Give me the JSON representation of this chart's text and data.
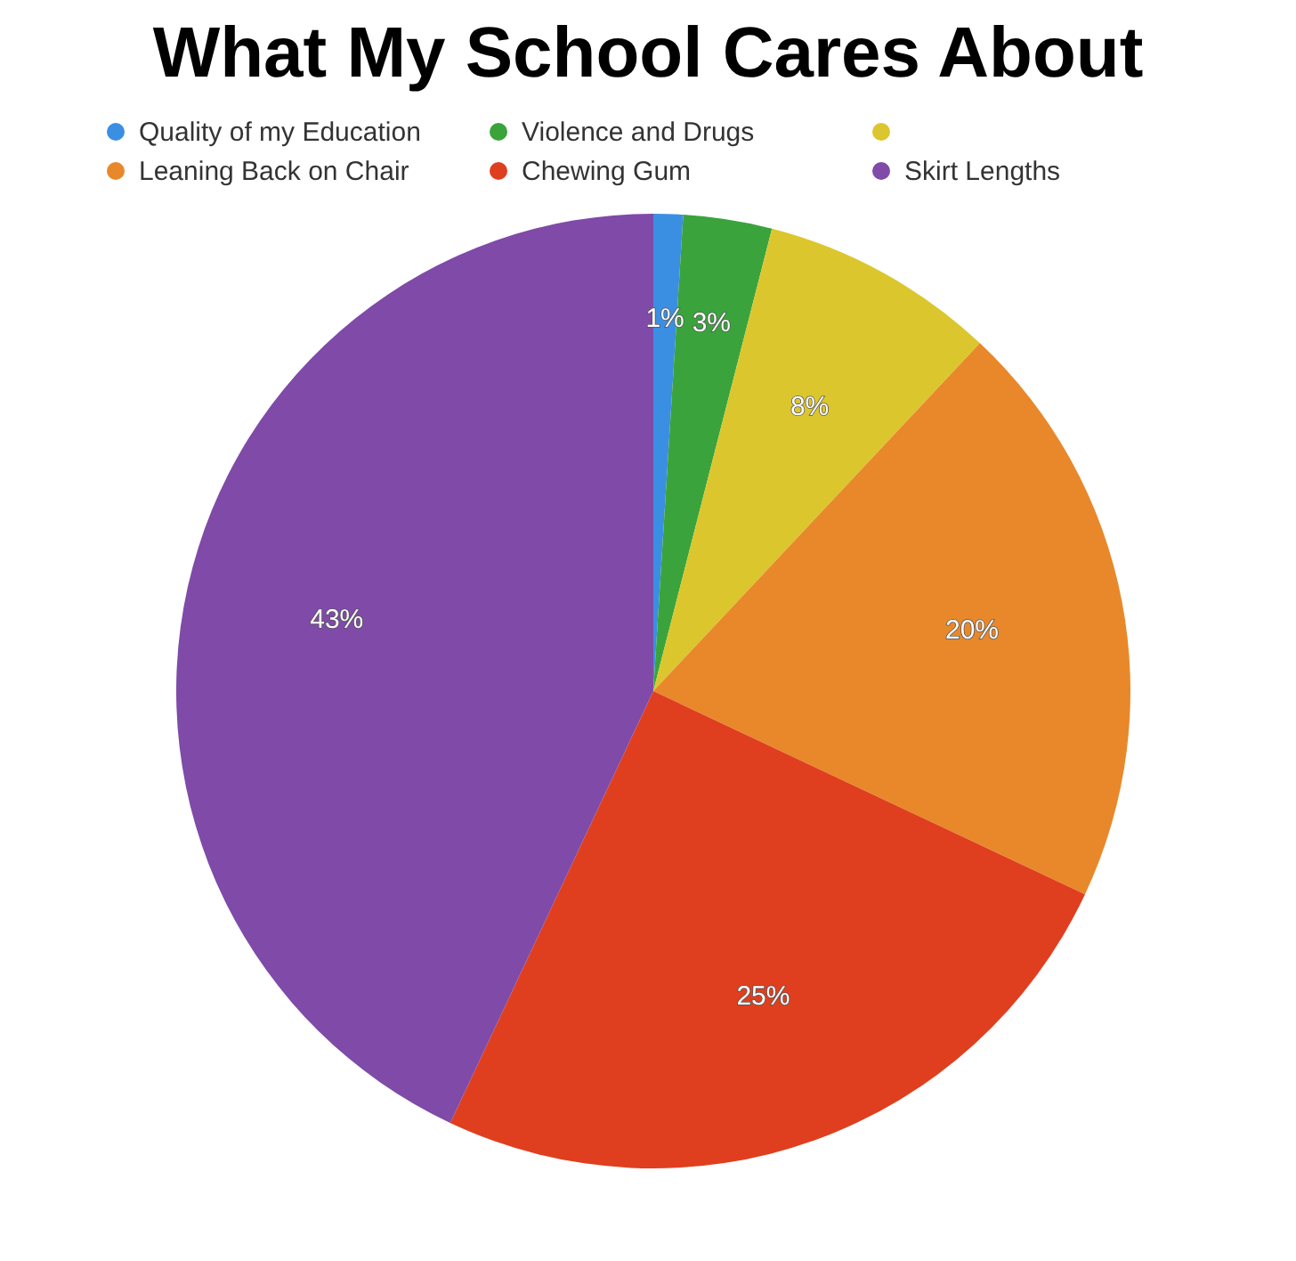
{
  "chart_data": {
    "type": "pie",
    "title": "What My School Cares About",
    "categories": [
      "Quality of my Education",
      "Violence and Drugs",
      null,
      "Leaning Back on Chair",
      "Chewing Gum",
      "Skirt Lengths"
    ],
    "values": [
      1,
      3,
      8,
      20,
      25,
      43
    ],
    "value_labels": [
      "1%",
      "3%",
      "8%",
      "20%",
      "25%",
      "43%"
    ],
    "colors": [
      "#3b8fe3",
      "#3aa33c",
      "#dcc62e",
      "#e8882a",
      "#df3f1f",
      "#7f4aa8"
    ],
    "legend": "top"
  }
}
